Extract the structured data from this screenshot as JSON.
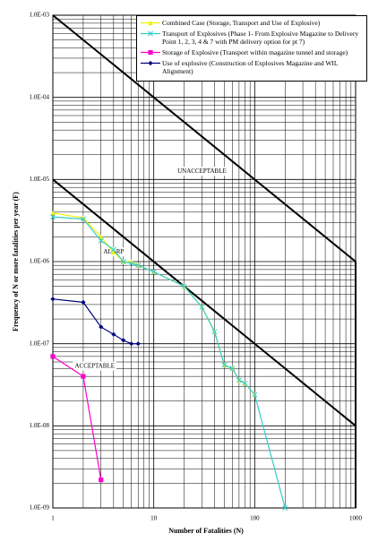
{
  "chart_data": {
    "type": "line",
    "x_label": "Number of Fatalities (N)",
    "y_label": "Frequency of N or more fatalities per year (F)",
    "log_x": true,
    "log_y": true,
    "grid": true,
    "xlim": [
      1,
      1000
    ],
    "xticks": [
      1,
      10,
      100,
      1000
    ],
    "ylim": [
      1e-09,
      0.001
    ],
    "yticks": [
      {
        "value": 0.001,
        "label": "1.0E-03"
      },
      {
        "value": 0.0001,
        "label": "1.0E-04"
      },
      {
        "value": 1e-05,
        "label": "1.0E-05"
      },
      {
        "value": 1e-06,
        "label": "1.0E-06"
      },
      {
        "value": 1e-07,
        "label": "1.0E-07"
      },
      {
        "value": 1e-08,
        "label": "1.0E-08"
      },
      {
        "value": 1e-09,
        "label": "1.0E-09"
      }
    ],
    "series": [
      {
        "name": "Combined Case (Storage, Transport and Use of Explosive)",
        "color": "#f0f000",
        "marker": "triangle",
        "x": [
          1,
          2,
          3,
          4,
          5,
          6,
          7,
          10,
          20,
          30,
          40,
          50,
          60,
          70,
          80,
          100
        ],
        "values": [
          3.9e-06,
          3.4e-06,
          2e-06,
          1.3e-06,
          1e-06,
          1e-06,
          9e-07,
          7.5e-07,
          5e-07,
          2.8e-07,
          1.4e-07,
          5.5e-08,
          5e-08,
          3.6e-08,
          3.3e-08,
          2.4e-08
        ]
      },
      {
        "name": "Transport of Explosives (Phase 1- From Explosive Magazine to Delivery Point 1, 2, 3, 4 & 7 with PM delivery option for pt 7)",
        "color": "#33cccc",
        "marker": "x",
        "x": [
          1,
          2,
          3,
          4,
          5,
          6,
          7,
          10,
          20,
          30,
          40,
          50,
          60,
          70,
          80,
          100,
          200
        ],
        "values": [
          3.5e-06,
          3.3e-06,
          1.8e-06,
          1.4e-06,
          1e-06,
          9.5e-07,
          9e-07,
          7.5e-07,
          5e-07,
          2.8e-07,
          1.4e-07,
          5.5e-08,
          5e-08,
          3.6e-08,
          3.3e-08,
          2.4e-08,
          1e-09
        ]
      },
      {
        "name": "Storage of Explosive (Transport within magazine tunnel and storage)",
        "color": "#ff00cc",
        "marker": "square",
        "x": [
          1,
          2,
          3
        ],
        "values": [
          7e-08,
          4e-08,
          2.2e-09
        ]
      },
      {
        "name": "Use of explosive (Construction of Explosives Magazine and WIL Alignment)",
        "color": "#000080",
        "marker": "diamond",
        "x": [
          1,
          2,
          3,
          4,
          5,
          6,
          7
        ],
        "values": [
          3.5e-07,
          3.2e-07,
          1.6e-07,
          1.3e-07,
          1.1e-07,
          1e-07,
          1e-07
        ]
      }
    ],
    "limit_lines": [
      {
        "color": "#000000",
        "x": [
          1,
          1000,
          1000
        ],
        "values": [
          0.001,
          1e-06,
          1e-09
        ]
      },
      {
        "color": "#000000",
        "x": [
          1,
          1000
        ],
        "values": [
          1e-05,
          1e-08
        ]
      }
    ],
    "annotations": [
      {
        "text": "UNACCEPTABLE",
        "x": 30,
        "y": 1.25e-05
      },
      {
        "text": "ALARP",
        "x": 4,
        "y": 1.3e-06
      },
      {
        "text": "ACCEPTABLE",
        "x": 2.6,
        "y": 5.3e-08
      }
    ]
  }
}
